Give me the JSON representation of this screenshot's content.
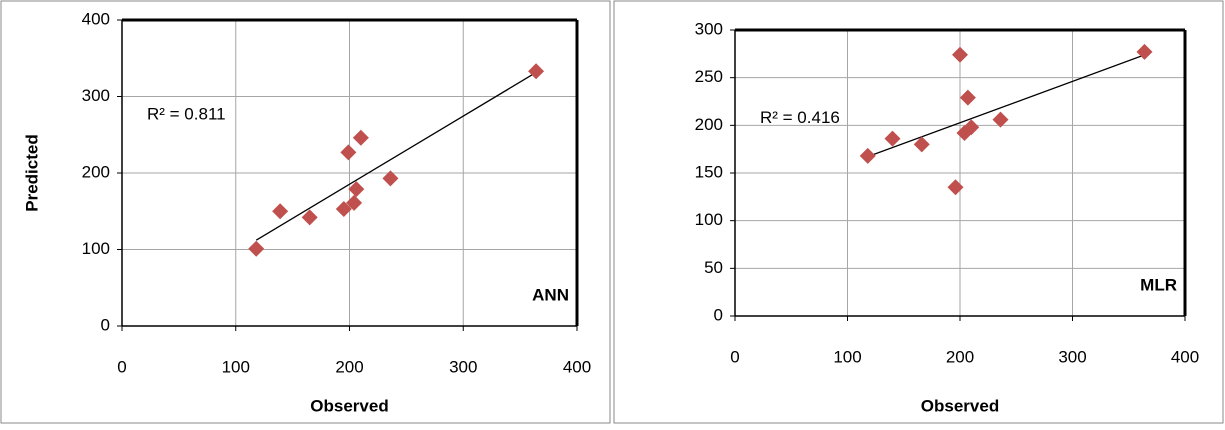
{
  "chart_data": [
    {
      "type": "scatter",
      "annotation": "R² = 0.811",
      "label": "ANN",
      "x_label": "Observed",
      "y_label": "Predicted",
      "series": [
        {
          "color": "#c0504d",
          "x": [
            118,
            139,
            165,
            195,
            204,
            206,
            199,
            210,
            236,
            364
          ],
          "values": [
            101,
            150,
            142,
            153,
            161,
            179,
            227,
            246,
            193,
            333
          ]
        }
      ],
      "xlim": [
        0,
        400
      ],
      "xticks": [
        0,
        100,
        200,
        300,
        400
      ],
      "ylim": [
        0,
        400
      ],
      "yticks": [
        0,
        100,
        200,
        300,
        400
      ],
      "grid": true,
      "trendline": true
    },
    {
      "type": "scatter",
      "annotation": "R² = 0.416",
      "label": "MLR",
      "x_label": "Observed",
      "series": [
        {
          "color": "#c0504d",
          "x": [
            118,
            140,
            166,
            196,
            200,
            204,
            207,
            210,
            236,
            364
          ],
          "values": [
            168,
            186,
            180,
            135,
            274,
            192,
            229,
            198,
            206,
            277
          ]
        }
      ],
      "xlim": [
        0,
        400
      ],
      "xticks": [
        0,
        100,
        200,
        300,
        400
      ],
      "ylim": [
        0,
        300
      ],
      "yticks": [
        0,
        50,
        100,
        150,
        200,
        250,
        300
      ],
      "grid": true,
      "trendline": true
    }
  ]
}
